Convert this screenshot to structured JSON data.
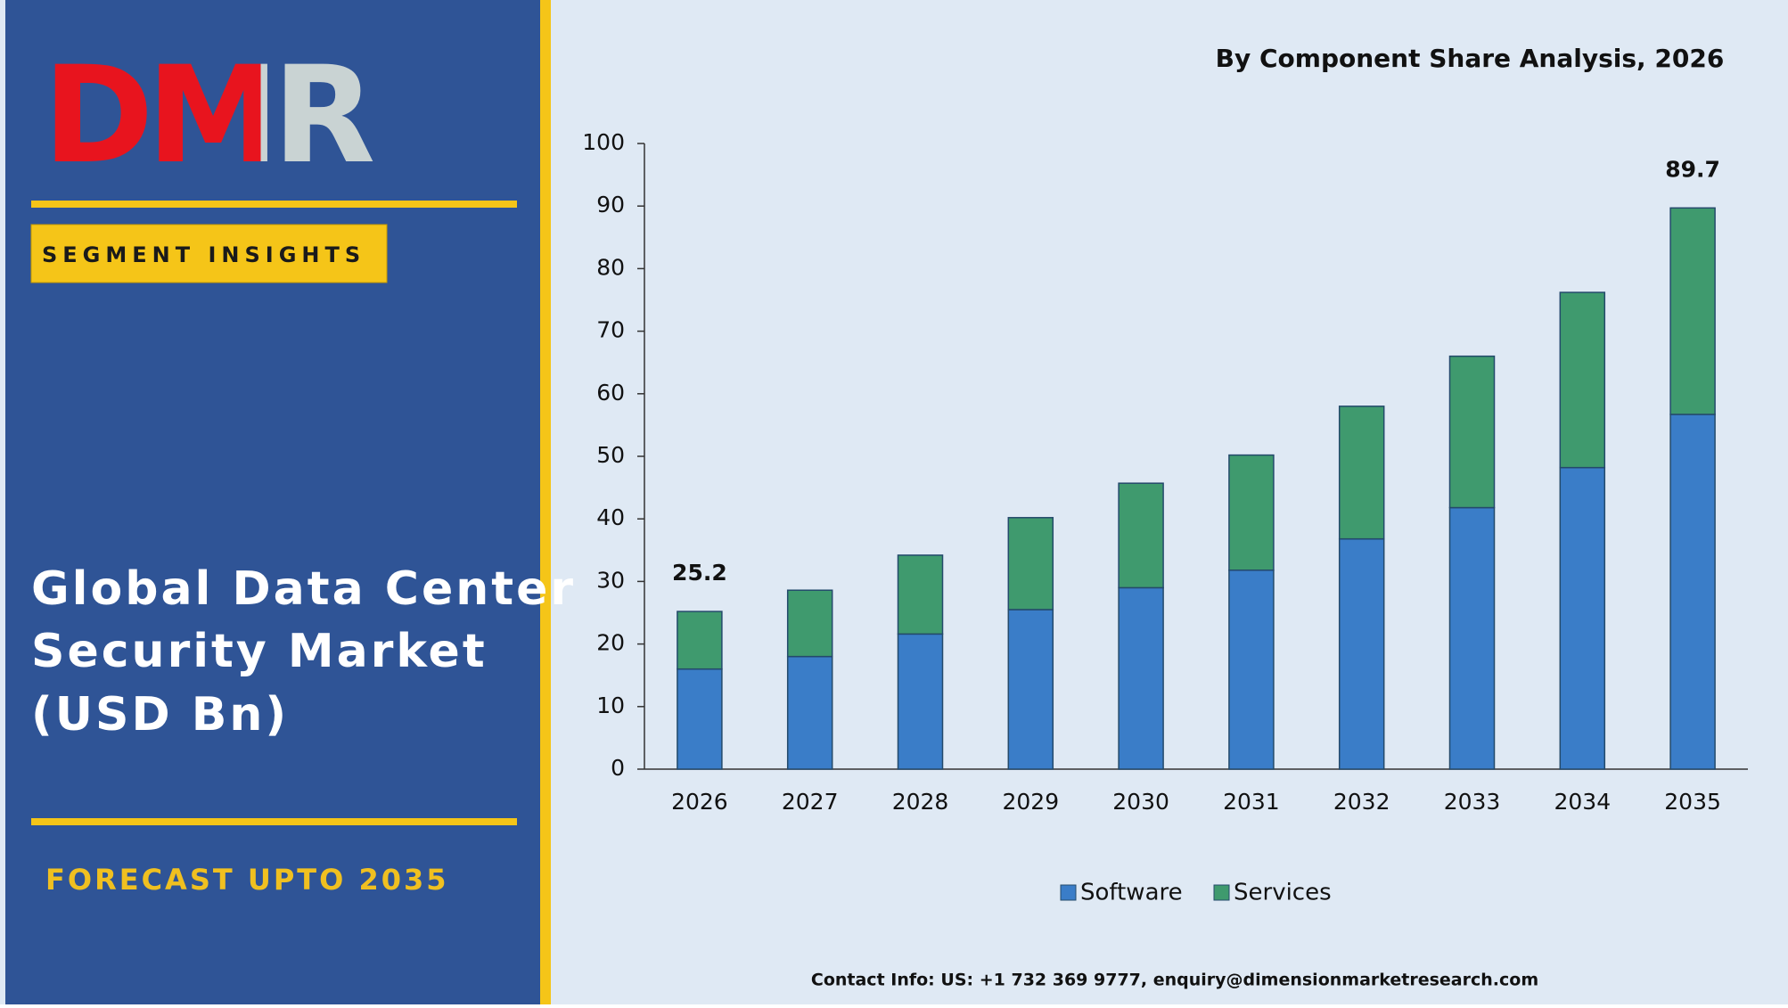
{
  "panel": {
    "logo": "DMR",
    "badge": "SEGMENT INSIGHTS",
    "title_lines": [
      "Global Data Center",
      "Security Market",
      "(USD Bn)"
    ],
    "forecast": "FORECAST UPTO 2035"
  },
  "contact": "Contact Info: US: +1 732 369 9777, enquiry@dimensionmarketresearch.com",
  "chart_data": {
    "type": "stacked_bar",
    "title": "By Component Share Analysis, 2026",
    "categories": [
      "2026",
      "2027",
      "2028",
      "2029",
      "2030",
      "2031",
      "2032",
      "2033",
      "2034",
      "2035"
    ],
    "series": [
      {
        "name": "Software",
        "color": "#3a7dc8",
        "values": [
          16,
          18,
          21.6,
          25.5,
          29,
          31.8,
          36.8,
          41.8,
          48.2,
          56.7
        ]
      },
      {
        "name": "Services",
        "color": "#3f9a6e",
        "values": [
          9.2,
          10.6,
          12.6,
          14.7,
          16.7,
          18.4,
          21.2,
          24.2,
          28,
          33
        ]
      }
    ],
    "annotations": [
      "25.2",
      "89.7"
    ],
    "ylim": [
      0,
      100
    ],
    "yticks": [
      0,
      10,
      20,
      30,
      40,
      50,
      60,
      70,
      80,
      90,
      100
    ],
    "grid": false,
    "legend": "bottom"
  }
}
